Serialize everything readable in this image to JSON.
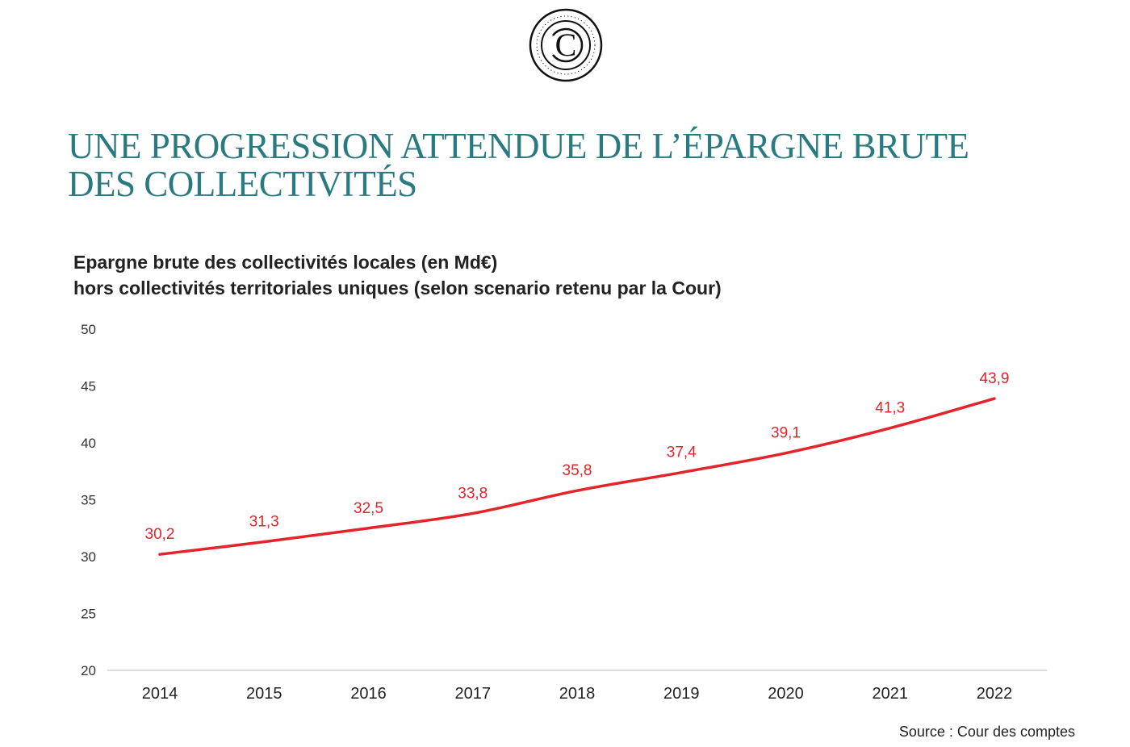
{
  "header": {
    "logo": {
      "icon": "cour-des-comptes-logo",
      "letter": "C"
    },
    "title_line1": "UNE PROGRESSION ATTENDUE DE L’ÉPARGNE BRUTE",
    "title_line2": "DES COLLECTIVITÉS",
    "title_color": "#2a7a82"
  },
  "chart_data": {
    "type": "line",
    "title_line1": "Epargne brute des collectivités locales (en Md€)",
    "title_line2": "hors collectivités territoriales uniques (selon scenario retenu par la Cour)",
    "xlabel": "",
    "ylabel": "",
    "x": [
      "2014",
      "2015",
      "2016",
      "2017",
      "2018",
      "2019",
      "2020",
      "2021",
      "2022"
    ],
    "series": [
      {
        "values": [
          30.2,
          31.3,
          32.5,
          33.8,
          35.8,
          37.4,
          39.1,
          41.3,
          43.9
        ],
        "labels": [
          "30,2",
          "31,3",
          "32,5",
          "33,8",
          "35,8",
          "37,4",
          "39,1",
          "41,3",
          "43,9"
        ],
        "color": "#e3242b"
      }
    ],
    "ylim": [
      20,
      50
    ],
    "yticks": [
      20,
      25,
      30,
      35,
      40,
      45,
      50
    ],
    "grid": false,
    "legend": "none"
  },
  "source": "Source : Cour des comptes"
}
